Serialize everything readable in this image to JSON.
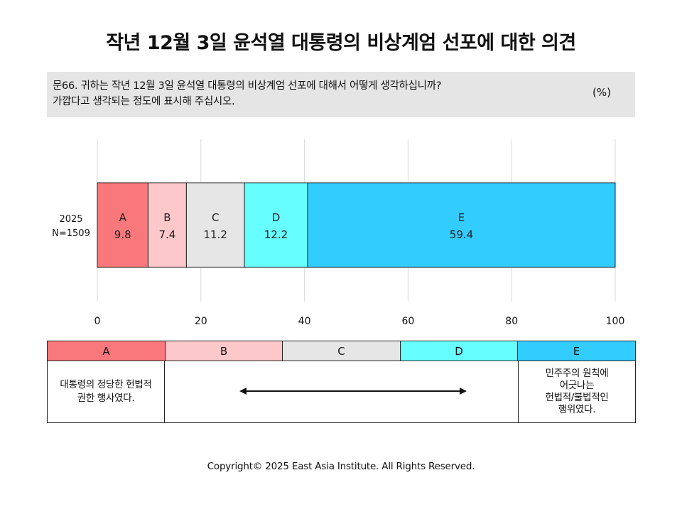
{
  "title": "작년 12월 3일 윤석열 대통령의 비상계엄 선포에 대한 의견",
  "question": {
    "text": "문66. 귀하는 작년 12월 3일 윤석열 대통령의 비상계엄 선포에 대해서 어떻게 생각하십니까?\n가깝다고 생각되는 정도에 표시해 주십시오.",
    "unit": "(%)"
  },
  "chart_data": {
    "type": "bar",
    "orientation": "horizontal-stacked",
    "categories": [
      "2025\nN=1509"
    ],
    "series": [
      {
        "name": "A",
        "values": [
          9.8
        ],
        "color": "#f8787c"
      },
      {
        "name": "B",
        "values": [
          7.4
        ],
        "color": "#fdc8c9"
      },
      {
        "name": "C",
        "values": [
          11.2
        ],
        "color": "#e6e6e6"
      },
      {
        "name": "D",
        "values": [
          12.2
        ],
        "color": "#66feff"
      },
      {
        "name": "E",
        "values": [
          59.4
        ],
        "color": "#33ccff"
      }
    ],
    "xlim": [
      0,
      100
    ],
    "xticks": [
      0,
      20,
      40,
      60,
      80,
      100
    ],
    "grid": true,
    "legend": "table-below"
  },
  "legend_table": {
    "headers": [
      "A",
      "B",
      "C",
      "D",
      "E"
    ],
    "colors": [
      "#f8787c",
      "#fdc8c9",
      "#e6e6e6",
      "#66feff",
      "#33ccff"
    ],
    "left_text": "대통령의 정당한 헌법적\n권한 행사였다.",
    "right_text": "민주주의 원칙에\n어긋나는\n헌법적/불법적인\n행위였다."
  },
  "copyright": "Copyright© 2025 East Asia Institute. All Rights Reserved."
}
